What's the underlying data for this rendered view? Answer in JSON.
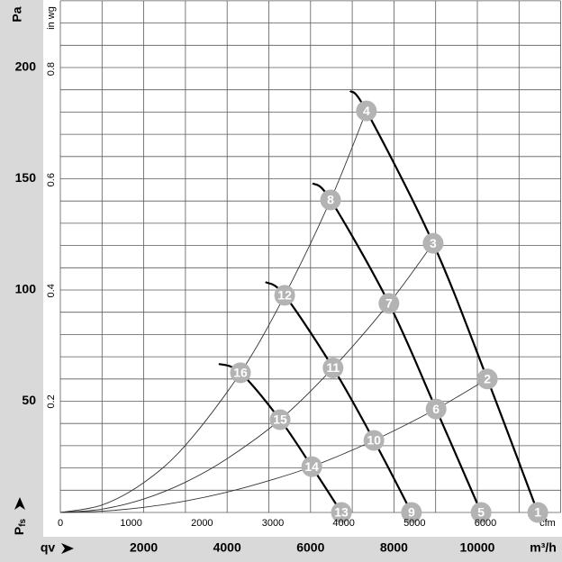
{
  "chart_data": {
    "type": "line",
    "y_quantity": {
      "symbol": "P",
      "subscript": "fs"
    },
    "y_label": "Pa",
    "y2_label": "in wg",
    "x_quantity": "qv",
    "x_label": "m³/h",
    "x2_label": "cfm",
    "xlim": [
      0,
      12000
    ],
    "ylim": [
      0,
      230
    ],
    "x2lim": [
      0,
      7063
    ],
    "y2lim": [
      0,
      0.923
    ],
    "xticks": [
      2000,
      4000,
      6000,
      8000,
      10000
    ],
    "yticks": [
      50,
      100,
      150,
      200
    ],
    "x2ticks": [
      0,
      1000,
      2000,
      3000,
      4000,
      5000,
      6000
    ],
    "y2ticks": [
      0.2,
      0.4,
      0.6,
      0.8
    ],
    "xgrid": [
      0,
      1000,
      2000,
      3000,
      4000,
      5000,
      6000,
      7000,
      8000,
      9000,
      10000,
      11000,
      12000
    ],
    "ygrid": [
      0,
      10,
      20,
      30,
      40,
      50,
      60,
      70,
      80,
      90,
      100,
      110,
      120,
      130,
      140,
      150,
      160,
      170,
      180,
      190,
      200,
      210,
      220,
      230
    ],
    "grid_color": "#5a5a5a",
    "fan_curves": [
      {
        "color": "#000000",
        "x": [
          6950,
          7340,
          8940,
          10240,
          11450
        ],
        "values": [
          189.5,
          180.5,
          121,
          60,
          0
        ]
      },
      {
        "color": "#000000",
        "x": [
          6050,
          6480,
          7880,
          9010,
          10090
        ],
        "values": [
          148,
          140.5,
          94,
          46.5,
          0
        ]
      },
      {
        "color": "#000000",
        "x": [
          4920,
          5380,
          6540,
          7520,
          8420
        ],
        "values": [
          103.6,
          97.6,
          65,
          32.4,
          0
        ]
      },
      {
        "color": "#000000",
        "x": [
          3800,
          4320,
          5270,
          6030,
          6740
        ],
        "values": [
          66.8,
          62.8,
          41.7,
          20.6,
          0
        ]
      }
    ],
    "system_curves": [
      {
        "color": "#333333",
        "x": [
          0,
          1000,
          2000,
          3000,
          4000,
          5000,
          6030,
          7520,
          9010,
          10240
        ],
        "values": [
          0,
          0.57,
          2.29,
          5.15,
          9.15,
          14.3,
          20.6,
          32.4,
          46.5,
          60
        ]
      },
      {
        "color": "#333333",
        "x": [
          0,
          1000,
          2000,
          3000,
          4000,
          5270,
          6540,
          7880,
          8940
        ],
        "values": [
          0,
          1.51,
          6.06,
          13.6,
          24.2,
          41.7,
          65,
          94,
          121
        ]
      },
      {
        "color": "#333333",
        "x": [
          0,
          1000,
          2000,
          3000,
          4320,
          5380,
          6480,
          7340
        ],
        "values": [
          0,
          3.35,
          13.4,
          30.2,
          62.8,
          97.6,
          140.5,
          180.5
        ]
      }
    ],
    "marker_color": "#b3b3b3",
    "markers": [
      {
        "label": "1",
        "x": 11450,
        "y": 0
      },
      {
        "label": "2",
        "x": 10240,
        "y": 60
      },
      {
        "label": "3",
        "x": 8940,
        "y": 121
      },
      {
        "label": "4",
        "x": 7340,
        "y": 180.5
      },
      {
        "label": "5",
        "x": 10090,
        "y": 0
      },
      {
        "label": "6",
        "x": 9010,
        "y": 46.5
      },
      {
        "label": "7",
        "x": 7880,
        "y": 94
      },
      {
        "label": "8",
        "x": 6480,
        "y": 140.5
      },
      {
        "label": "9",
        "x": 8420,
        "y": 0
      },
      {
        "label": "10",
        "x": 7520,
        "y": 32.4
      },
      {
        "label": "11",
        "x": 6540,
        "y": 65
      },
      {
        "label": "12",
        "x": 5380,
        "y": 97.6
      },
      {
        "label": "13",
        "x": 6740,
        "y": 0
      },
      {
        "label": "14",
        "x": 6030,
        "y": 20.6
      },
      {
        "label": "15",
        "x": 5270,
        "y": 41.7
      },
      {
        "label": "16",
        "x": 4320,
        "y": 62.8
      }
    ]
  }
}
